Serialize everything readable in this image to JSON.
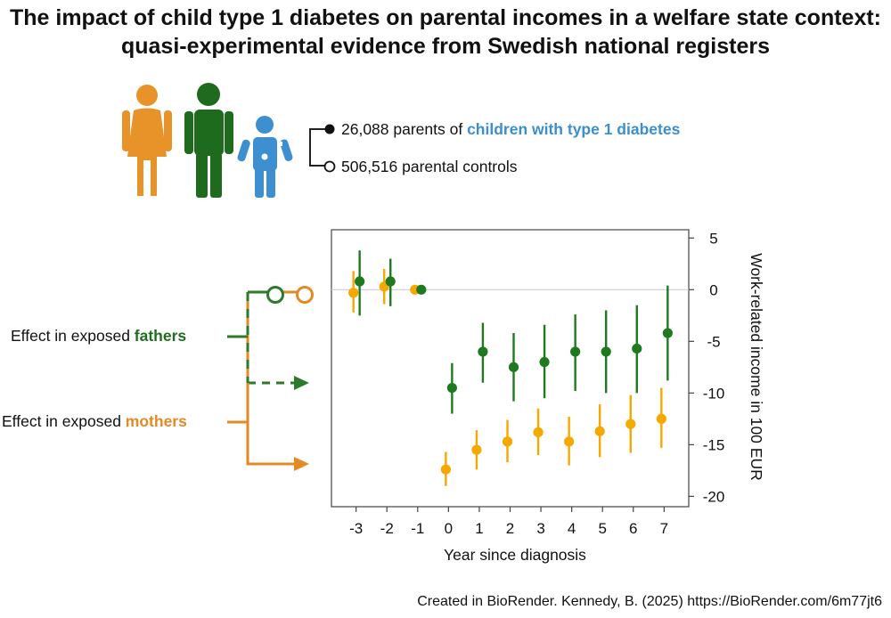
{
  "title": {
    "line1": "The impact of child type 1 diabetes on parental incomes in a welfare state context:",
    "line2": "quasi-experimental evidence from Swedish national registers"
  },
  "cohort": {
    "exposed_count": "26,088 parents of ",
    "exposed_highlight": "children with type 1 diabetes",
    "controls": "506,516 parental controls"
  },
  "legend": {
    "fathers_prefix": "Effect in exposed ",
    "fathers_highlight": "fathers",
    "mothers_prefix": "Effect in exposed ",
    "mothers_highlight": "mothers"
  },
  "colors": {
    "fathers": "#1f7a1f",
    "mothers": "#f5a800",
    "mother_icon": "#e8922a",
    "father_icon": "#1e6b1e",
    "child_icon": "#3d8fd0",
    "highlight_blue": "#3b8fcc",
    "legend_orange": "#e38a25"
  },
  "chart_data": {
    "type": "scatter",
    "subtype": "event-study point estimates with confidence intervals",
    "xlabel": "Year since diagnosis",
    "ylabel": "Work-related income in 100 EUR",
    "x_ticks": [
      "-3",
      "-2",
      "-1",
      "0",
      "1",
      "2",
      "3",
      "4",
      "5",
      "6",
      "7"
    ],
    "y_ticks": [
      "5",
      "0",
      "-5",
      "-10",
      "-15",
      "-20"
    ],
    "xlim": [
      -3.8,
      7.8
    ],
    "ylim": [
      -21,
      5.8
    ],
    "reference_line": 0,
    "series": [
      {
        "name": "fathers",
        "x": [
          -3,
          -2,
          -1,
          0,
          1,
          2,
          3,
          4,
          5,
          6,
          7
        ],
        "y": [
          0.8,
          0.8,
          0,
          -9.5,
          -6,
          -7.5,
          -7,
          -6,
          -6,
          -5.7,
          -4.2
        ],
        "ci_low": [
          -2.5,
          -1.6,
          0,
          -12,
          -9,
          -10.8,
          -10.5,
          -9.8,
          -10,
          -10,
          -8.8
        ],
        "ci_high": [
          3.8,
          3.0,
          0,
          -7.1,
          -3.2,
          -4.2,
          -3.4,
          -2.4,
          -2,
          -1.5,
          0.4
        ]
      },
      {
        "name": "mothers",
        "x": [
          -3,
          -2,
          -1,
          0,
          1,
          2,
          3,
          4,
          5,
          6,
          7
        ],
        "y": [
          -0.3,
          0.3,
          0,
          -17.4,
          -15.5,
          -14.7,
          -13.8,
          -14.7,
          -13.7,
          -13,
          -12.5
        ],
        "ci_low": [
          -2.2,
          -1.4,
          0,
          -19,
          -17.4,
          -16.7,
          -16,
          -17,
          -16.2,
          -15.8,
          -15.3
        ],
        "ci_high": [
          1.8,
          2.0,
          0,
          -15.7,
          -13.6,
          -12.6,
          -11.5,
          -12.3,
          -11.1,
          -10.2,
          -9.5
        ]
      }
    ]
  },
  "credit": "Created in BioRender. Kennedy, B. (2025) https://BioRender.com/6m77jt6"
}
